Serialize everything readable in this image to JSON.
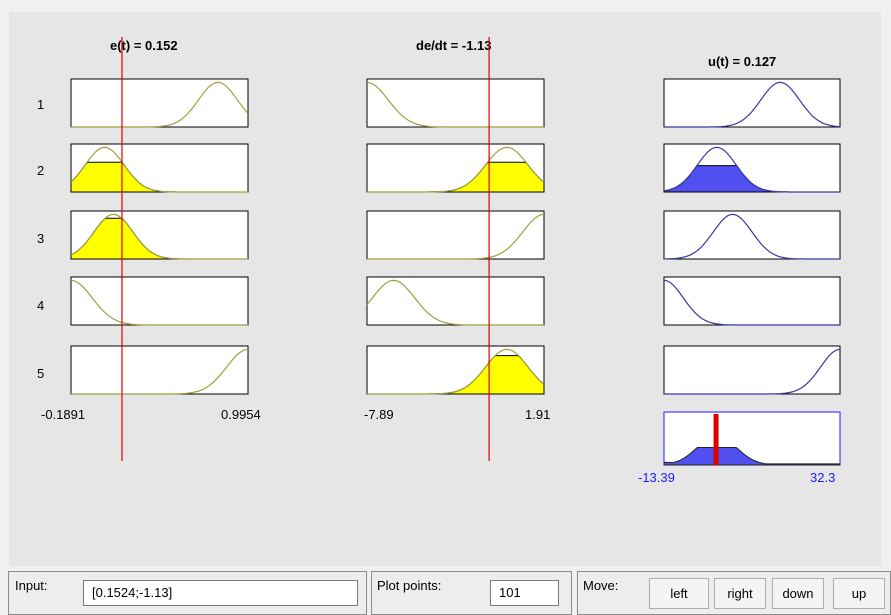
{
  "variables": {
    "input1": {
      "title": "e(t) = 0.152",
      "range_min_label": "-0.1891",
      "range_max_label": "0.9954",
      "range": [
        -0.1891,
        0.9954
      ],
      "value": 0.152
    },
    "input2": {
      "title": "de/dt = -1.13",
      "range_min_label": "-7.89",
      "range_max_label": "1.91",
      "range": [
        -7.89,
        1.91
      ],
      "value": -1.13
    },
    "output": {
      "title": "u(t) = 0.127",
      "range_min_label": "-13.39",
      "range_max_label": "32.3",
      "range": [
        -13.39,
        32.3
      ],
      "value": 0.127
    }
  },
  "rules": {
    "numbers": [
      "1",
      "2",
      "3",
      "4",
      "5"
    ]
  },
  "colors": {
    "input_fill": "#ffff00",
    "input_curve": "#a0a040",
    "output_fill": "#5050f0",
    "output_curve": "#3a3aa0",
    "indicator": "#e00000",
    "axis_blue": "#1c1cff"
  },
  "bottom": {
    "input_label": "Input:",
    "input_value": "[0.1524;-1.13]",
    "plot_points_label": "Plot points:",
    "plot_points_value": "101",
    "move_label": "Move:",
    "buttons": [
      "left",
      "right",
      "down",
      "up"
    ]
  }
}
